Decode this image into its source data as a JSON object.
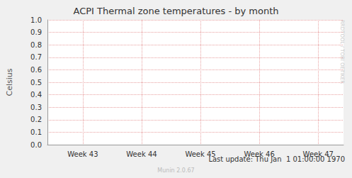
{
  "chart_data": {
    "type": "line",
    "title": "ACPI Thermal zone temperatures - by month",
    "ylabel": "Celsius",
    "series": [],
    "xlim": [
      42.4,
      47.43
    ],
    "xticks": [
      {
        "value": 43,
        "label": "Week 43"
      },
      {
        "value": 44,
        "label": "Week 44"
      },
      {
        "value": 45,
        "label": "Week 45"
      },
      {
        "value": 46,
        "label": "Week 46"
      },
      {
        "value": 47,
        "label": "Week 47"
      }
    ],
    "ylim": [
      0,
      1
    ],
    "yticks": [
      {
        "value": 0,
        "label": "0.0"
      },
      {
        "value": 0.1,
        "label": "0.1"
      },
      {
        "value": 0.2,
        "label": "0.2"
      },
      {
        "value": 0.3,
        "label": "0.3"
      },
      {
        "value": 0.4,
        "label": "0.4"
      },
      {
        "value": 0.5,
        "label": "0.5"
      },
      {
        "value": 0.6,
        "label": "0.6"
      },
      {
        "value": 0.7,
        "label": "0.7"
      },
      {
        "value": 0.8,
        "label": "0.8"
      },
      {
        "value": 0.9,
        "label": "0.9"
      },
      {
        "value": 1,
        "label": "1.0"
      }
    ],
    "grid": true,
    "annotations": {
      "last_update": "Last update: Thu Jan  1 01:00:00 1970",
      "footer": "Munin 2.0.67",
      "watermark": "RRDTOOL / TOBI OETIKER"
    }
  }
}
